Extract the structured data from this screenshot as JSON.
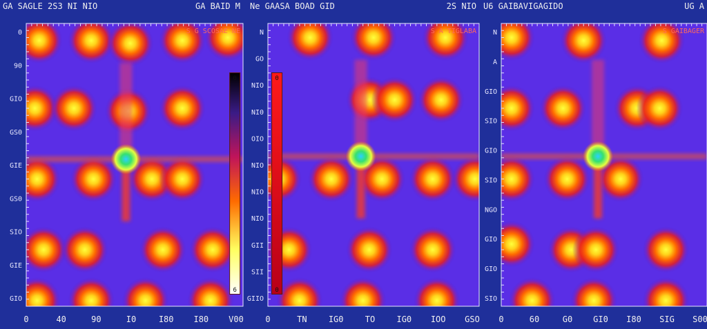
{
  "chart_data": [
    {
      "type": "heatmap",
      "title_left": "GA SAGLE 2S3 NI NIO",
      "title_right": "GA BAID M",
      "corner_label": "S  G SCOSAE NE",
      "x_ticks": [
        "0",
        "40",
        "90",
        "I0",
        "I80",
        "I80",
        "V00"
      ],
      "y_ticks": [
        "0",
        "90",
        "GIO",
        "GS0",
        "GIE",
        "GS0",
        "SIO",
        "GIE",
        "GIO"
      ],
      "blobs": [
        [
          0.06,
          0.06
        ],
        [
          0.3,
          0.06
        ],
        [
          0.48,
          0.07
        ],
        [
          0.72,
          0.06
        ],
        [
          0.93,
          0.05
        ],
        [
          0.04,
          0.3
        ],
        [
          0.22,
          0.3
        ],
        [
          0.47,
          0.31
        ],
        [
          0.72,
          0.3
        ],
        [
          0.05,
          0.55
        ],
        [
          0.31,
          0.55
        ],
        [
          0.58,
          0.55
        ],
        [
          0.72,
          0.55
        ],
        [
          0.08,
          0.8
        ],
        [
          0.27,
          0.8
        ],
        [
          0.63,
          0.8
        ],
        [
          0.86,
          0.8
        ],
        [
          0.05,
          0.98
        ],
        [
          0.3,
          0.98
        ],
        [
          0.55,
          0.98
        ],
        [
          0.85,
          0.98
        ]
      ],
      "plume": [
        0.46,
        0.48
      ],
      "colorbar": {
        "left": 0.94,
        "labels": [
          "0",
          "6"
        ]
      }
    },
    {
      "type": "heatmap",
      "title_left": "Ne  GAASA BOAD GID",
      "title_right": "2S NIO",
      "corner_label": "S  A TIGLABA",
      "x_ticks": [
        "0",
        "TN",
        "IG0",
        "TO",
        "IG0",
        "IOO",
        "GSO"
      ],
      "y_ticks": [
        "N",
        "GO",
        "NIO",
        "NI0",
        "OIO",
        "NIO",
        "NIO",
        "NIO",
        "GII",
        "SII",
        "GIIO"
      ],
      "blobs": [
        [
          0.2,
          0.05
        ],
        [
          0.5,
          0.05
        ],
        [
          0.84,
          0.05
        ],
        [
          0.48,
          0.27
        ],
        [
          0.6,
          0.27
        ],
        [
          0.82,
          0.27
        ],
        [
          0.05,
          0.55
        ],
        [
          0.3,
          0.55
        ],
        [
          0.54,
          0.55
        ],
        [
          0.78,
          0.55
        ],
        [
          0.98,
          0.55
        ],
        [
          0.1,
          0.8
        ],
        [
          0.48,
          0.8
        ],
        [
          0.78,
          0.8
        ],
        [
          0.15,
          0.98
        ],
        [
          0.45,
          0.98
        ],
        [
          0.8,
          0.98
        ]
      ],
      "plume": [
        0.44,
        0.47
      ],
      "colorbar": {
        "left": 0.02,
        "labels": [
          "0",
          "0"
        ]
      }
    },
    {
      "type": "heatmap",
      "title_left": "U6  GAIBAVIGAGIDO",
      "title_right": "UG A",
      "corner_label": "S  GAIBAGER",
      "x_ticks": [
        "0",
        "60",
        "G0",
        "GI0",
        "I80",
        "SIG",
        "S00"
      ],
      "y_ticks": [
        "N",
        "A",
        "GIO",
        "SIO",
        "GIO",
        "SIO",
        "NGO",
        "GIO",
        "GIO",
        "SIO"
      ],
      "blobs": [
        [
          0.05,
          0.05
        ],
        [
          0.4,
          0.06
        ],
        [
          0.78,
          0.06
        ],
        [
          0.05,
          0.3
        ],
        [
          0.3,
          0.3
        ],
        [
          0.66,
          0.3
        ],
        [
          0.77,
          0.3
        ],
        [
          0.05,
          0.55
        ],
        [
          0.32,
          0.55
        ],
        [
          0.58,
          0.55
        ],
        [
          0.05,
          0.78
        ],
        [
          0.34,
          0.8
        ],
        [
          0.46,
          0.8
        ],
        [
          0.8,
          0.8
        ],
        [
          0.15,
          0.98
        ],
        [
          0.45,
          0.98
        ],
        [
          0.8,
          0.98
        ]
      ],
      "plume": [
        0.47,
        0.47
      ]
    }
  ]
}
